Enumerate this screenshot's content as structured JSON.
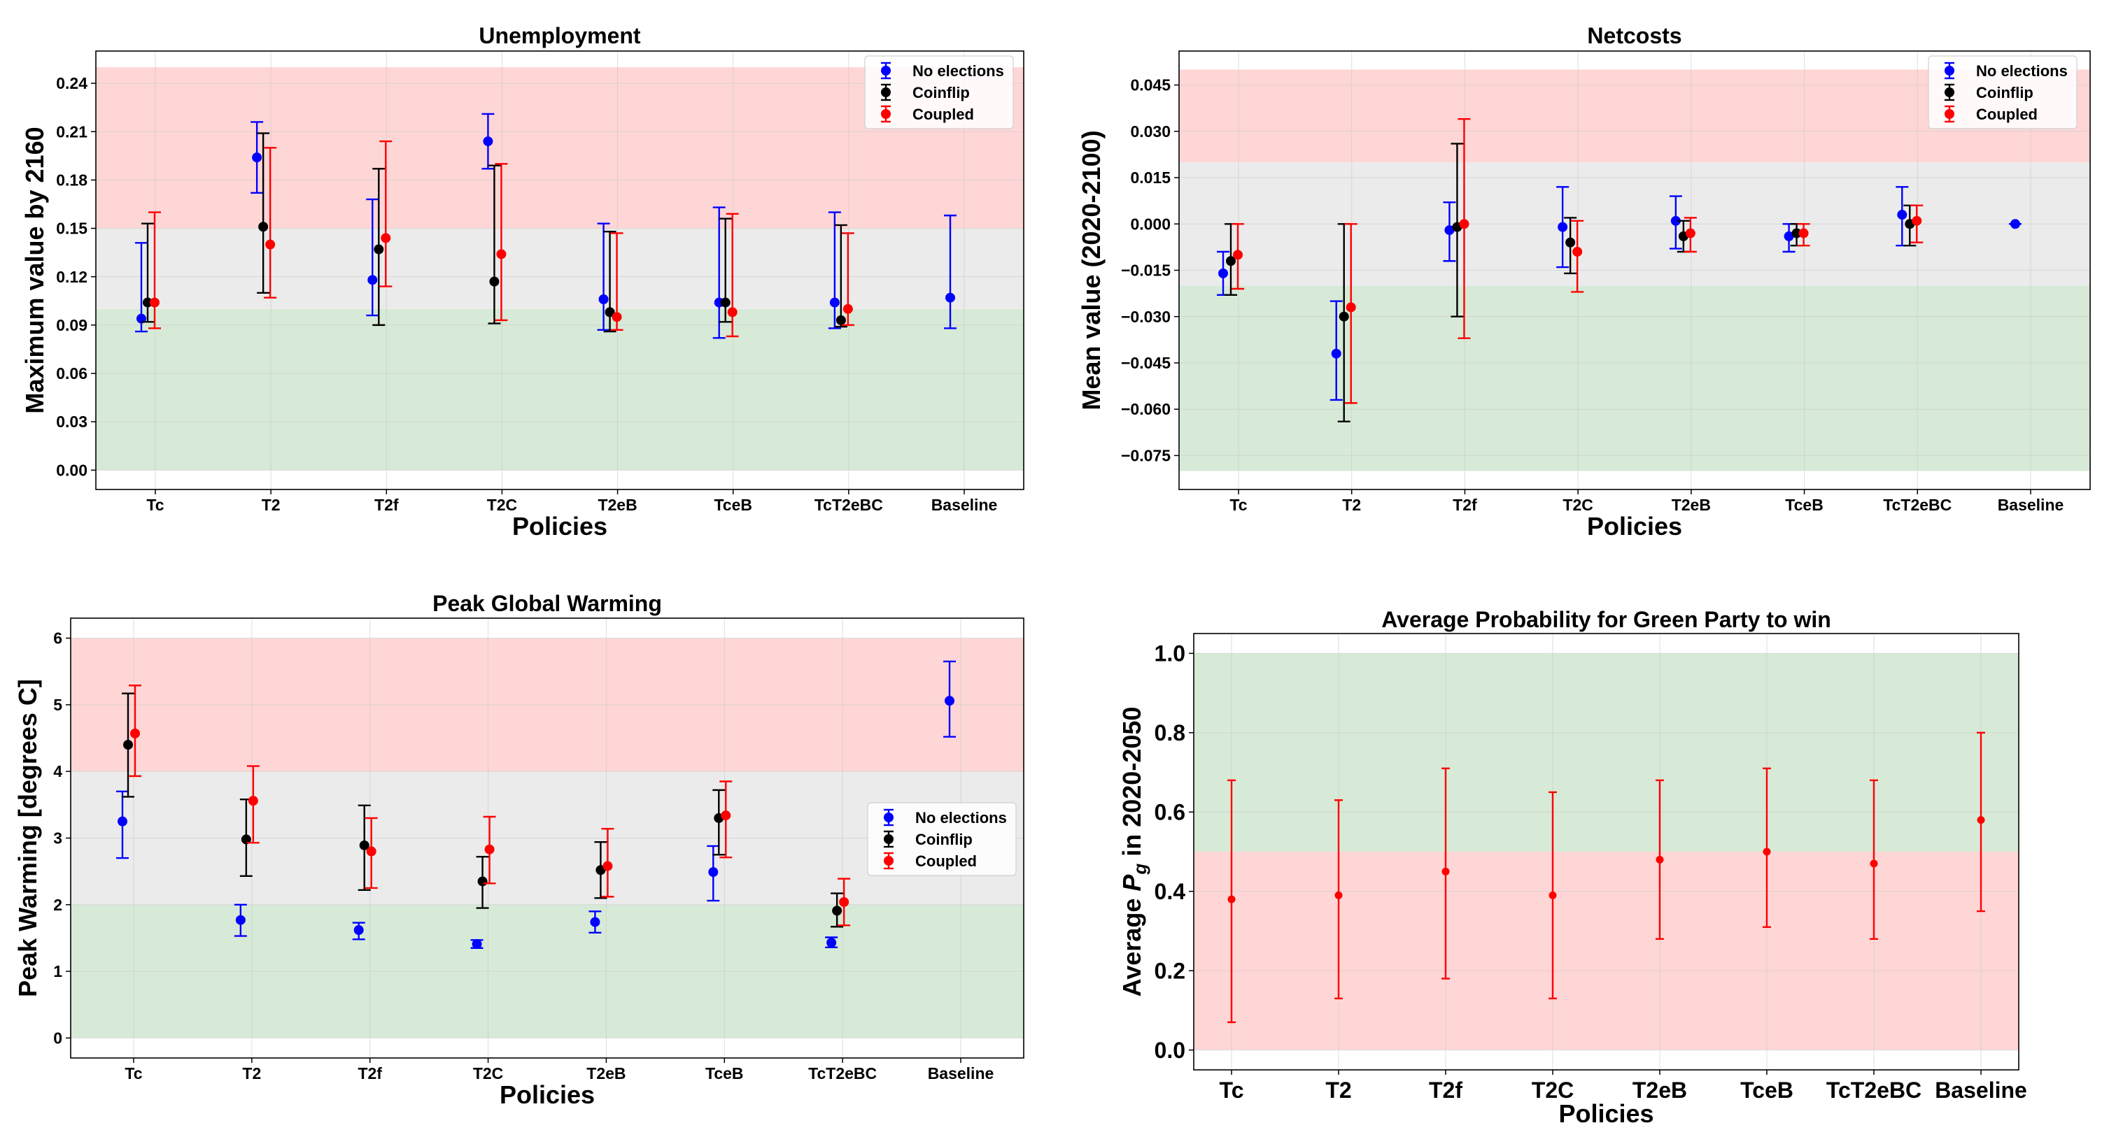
{
  "colors": {
    "no_elections": "#0000ff",
    "coinflip": "#000000",
    "coupled": "#ff0000",
    "band_red": "#ffd6d6",
    "band_grey": "#ebebeb",
    "band_green": "#d7ead7"
  },
  "chart_data": [
    {
      "type": "errorbar",
      "title": "Unemployment",
      "xlabel": "Policies",
      "ylabel": "Maximum value by 2160",
      "categories": [
        "Tc",
        "T2",
        "T2f",
        "T2C",
        "T2eB",
        "TceB",
        "TcT2eBC",
        "Baseline"
      ],
      "ylim": [
        -0.012,
        0.26
      ],
      "yticks": [
        0.0,
        0.03,
        0.06,
        0.09,
        0.12,
        0.15,
        0.18,
        0.21,
        0.24
      ],
      "ytick_labels": [
        "0.00",
        "0.03",
        "0.06",
        "0.09",
        "0.12",
        "0.15",
        "0.18",
        "0.21",
        "0.24"
      ],
      "bands": [
        {
          "from": 0.0,
          "to": 0.1,
          "color": "green"
        },
        {
          "from": 0.1,
          "to": 0.15,
          "color": "grey"
        },
        {
          "from": 0.15,
          "to": 0.25,
          "color": "red"
        }
      ],
      "legend": {
        "position": "upper right",
        "entries": [
          "No elections",
          "Coinflip",
          "Coupled"
        ]
      },
      "series": [
        {
          "name": "No elections",
          "color": "blue",
          "values": [
            0.094,
            0.194,
            0.118,
            0.204,
            0.106,
            0.104,
            0.104,
            0.107
          ],
          "lower": [
            0.086,
            0.172,
            0.096,
            0.187,
            0.087,
            0.082,
            0.088,
            0.088
          ],
          "upper": [
            0.141,
            0.216,
            0.168,
            0.221,
            0.153,
            0.163,
            0.16,
            0.158
          ]
        },
        {
          "name": "Coinflip",
          "color": "black",
          "values": [
            0.104,
            0.151,
            0.137,
            0.117,
            0.098,
            0.104,
            0.093,
            null
          ],
          "lower": [
            0.092,
            0.11,
            0.09,
            0.091,
            0.086,
            0.092,
            0.089,
            null
          ],
          "upper": [
            0.153,
            0.209,
            0.187,
            0.189,
            0.148,
            0.156,
            0.152,
            null
          ]
        },
        {
          "name": "Coupled",
          "color": "red",
          "values": [
            0.104,
            0.14,
            0.144,
            0.134,
            0.095,
            0.098,
            0.1,
            null
          ],
          "lower": [
            0.088,
            0.107,
            0.114,
            0.093,
            0.087,
            0.083,
            0.09,
            null
          ],
          "upper": [
            0.16,
            0.2,
            0.204,
            0.19,
            0.147,
            0.159,
            0.147,
            null
          ]
        }
      ]
    },
    {
      "type": "errorbar",
      "title": "Netcosts",
      "xlabel": "Policies",
      "ylabel": "Mean value (2020-2100)",
      "categories": [
        "Tc",
        "T2",
        "T2f",
        "T2C",
        "T2eB",
        "TceB",
        "TcT2eBC",
        "Baseline"
      ],
      "ylim": [
        -0.086,
        0.056
      ],
      "yticks": [
        -0.075,
        -0.06,
        -0.045,
        -0.03,
        -0.015,
        0.0,
        0.015,
        0.03,
        0.045
      ],
      "ytick_labels": [
        "−0.075",
        "−0.060",
        "−0.045",
        "−0.030",
        "−0.015",
        "0.000",
        "0.015",
        "0.030",
        "0.045"
      ],
      "bands": [
        {
          "from": -0.08,
          "to": -0.02,
          "color": "green"
        },
        {
          "from": -0.02,
          "to": 0.02,
          "color": "grey"
        },
        {
          "from": 0.02,
          "to": 0.05,
          "color": "red"
        }
      ],
      "legend": {
        "position": "upper right",
        "entries": [
          "No elections",
          "Coinflip",
          "Coupled"
        ]
      },
      "series": [
        {
          "name": "No elections",
          "color": "blue",
          "values": [
            -0.016,
            -0.042,
            -0.002,
            -0.001,
            0.001,
            -0.004,
            0.003,
            0.0
          ],
          "lower": [
            -0.023,
            -0.057,
            -0.012,
            -0.014,
            -0.008,
            -0.009,
            -0.007,
            0.0
          ],
          "upper": [
            -0.009,
            -0.025,
            0.007,
            0.012,
            0.009,
            0.0,
            0.012,
            0.0
          ]
        },
        {
          "name": "Coinflip",
          "color": "black",
          "values": [
            -0.012,
            -0.03,
            -0.001,
            -0.006,
            -0.004,
            -0.003,
            0.0,
            null
          ],
          "lower": [
            -0.023,
            -0.064,
            -0.03,
            -0.016,
            -0.009,
            -0.007,
            -0.007,
            null
          ],
          "upper": [
            0.0,
            0.0,
            0.026,
            0.002,
            0.001,
            0.0,
            0.006,
            null
          ]
        },
        {
          "name": "Coupled",
          "color": "red",
          "values": [
            -0.01,
            -0.027,
            0.0,
            -0.009,
            -0.003,
            -0.003,
            0.001,
            null
          ],
          "lower": [
            -0.021,
            -0.058,
            -0.037,
            -0.022,
            -0.009,
            -0.007,
            -0.006,
            null
          ],
          "upper": [
            0.0,
            0.0,
            0.034,
            0.001,
            0.002,
            0.0,
            0.006,
            null
          ]
        }
      ]
    },
    {
      "type": "errorbar",
      "title": "Peak Global Warming",
      "xlabel": "Policies",
      "ylabel": "Peak Warming [degrees C]",
      "categories": [
        "Tc",
        "T2",
        "T2f",
        "T2C",
        "T2eB",
        "TceB",
        "TcT2eBC",
        "Baseline"
      ],
      "ylim": [
        -0.3,
        6.3
      ],
      "yticks": [
        0,
        1,
        2,
        3,
        4,
        5,
        6
      ],
      "ytick_labels": [
        "0",
        "1",
        "2",
        "3",
        "4",
        "5",
        "6"
      ],
      "bands": [
        {
          "from": 0,
          "to": 2,
          "color": "green"
        },
        {
          "from": 2,
          "to": 4,
          "color": "grey"
        },
        {
          "from": 4,
          "to": 6,
          "color": "red"
        }
      ],
      "legend": {
        "position": "center right",
        "entries": [
          "No elections",
          "Coinflip",
          "Coupled"
        ]
      },
      "series": [
        {
          "name": "No elections",
          "color": "blue",
          "values": [
            3.25,
            1.77,
            1.62,
            1.41,
            1.74,
            2.49,
            1.43,
            5.06
          ],
          "lower": [
            2.7,
            1.53,
            1.48,
            1.35,
            1.58,
            2.06,
            1.36,
            4.52
          ],
          "upper": [
            3.7,
            2.0,
            1.73,
            1.47,
            1.9,
            2.88,
            1.51,
            5.65
          ]
        },
        {
          "name": "Coinflip",
          "color": "black",
          "values": [
            4.4,
            2.98,
            2.89,
            2.35,
            2.52,
            3.3,
            1.91,
            null
          ],
          "lower": [
            3.62,
            2.43,
            2.22,
            1.95,
            2.1,
            2.75,
            1.67,
            null
          ],
          "upper": [
            5.17,
            3.58,
            3.49,
            2.72,
            2.94,
            3.72,
            2.17,
            null
          ]
        },
        {
          "name": "Coupled",
          "color": "red",
          "values": [
            4.57,
            3.56,
            2.8,
            2.83,
            2.58,
            3.34,
            2.04,
            null
          ],
          "lower": [
            3.93,
            2.93,
            2.25,
            2.32,
            2.12,
            2.71,
            1.69,
            null
          ],
          "upper": [
            5.29,
            4.08,
            3.3,
            3.32,
            3.14,
            3.85,
            2.39,
            null
          ]
        }
      ]
    },
    {
      "type": "errorbar",
      "title": "Average Probability for Green Party to win",
      "xlabel": "Policies",
      "ylabel_prefix": "Average ",
      "ylabel_symbol": "P",
      "ylabel_subscript": "g",
      "ylabel_suffix": " in 2020-2050",
      "categories": [
        "Tc",
        "T2",
        "T2f",
        "T2C",
        "T2eB",
        "TceB",
        "TcT2eBC",
        "Baseline"
      ],
      "ylim": [
        -0.05,
        1.05
      ],
      "yticks": [
        0.0,
        0.2,
        0.4,
        0.6,
        0.8,
        1.0
      ],
      "ytick_labels": [
        "0.0",
        "0.2",
        "0.4",
        "0.6",
        "0.8",
        "1.0"
      ],
      "bands": [
        {
          "from": 0.0,
          "to": 0.5,
          "color": "red"
        },
        {
          "from": 0.5,
          "to": 1.0,
          "color": "green"
        }
      ],
      "series": [
        {
          "name": "Coupled",
          "color": "red",
          "values": [
            0.38,
            0.39,
            0.45,
            0.39,
            0.48,
            0.5,
            0.47,
            0.58
          ],
          "lower": [
            0.07,
            0.13,
            0.18,
            0.13,
            0.28,
            0.31,
            0.28,
            0.35
          ],
          "upper": [
            0.68,
            0.63,
            0.71,
            0.65,
            0.68,
            0.71,
            0.68,
            0.8
          ]
        }
      ]
    }
  ]
}
